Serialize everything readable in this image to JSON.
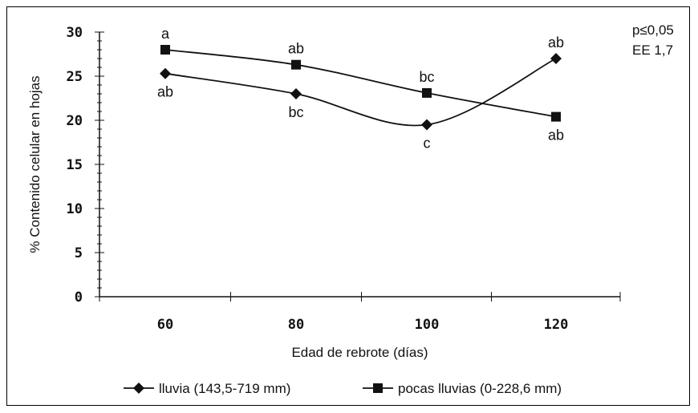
{
  "chart_data": {
    "type": "line",
    "xlabel": "Edad de rebrote (días)",
    "ylabel": "% Contenido celular en hojas",
    "categories": [
      "60",
      "80",
      "100",
      "120"
    ],
    "x_ticks": [
      "60",
      "80",
      "100",
      "120"
    ],
    "y_ticks": [
      "0",
      "5",
      "10",
      "15",
      "20",
      "25",
      "30"
    ],
    "ylim": [
      0,
      30
    ],
    "grid": false,
    "legend_position": "bottom",
    "annotations": [
      "p≤0,05",
      "EE 1,7"
    ],
    "series": [
      {
        "name": "lluvia (143,5-719 mm)",
        "marker": "diamond",
        "smooth": true,
        "values": [
          25.3,
          23.0,
          19.5,
          27.0
        ],
        "labels": [
          "ab",
          "bc",
          "c",
          "ab"
        ]
      },
      {
        "name": "pocas lluvias (0-228,6 mm)",
        "marker": "square",
        "smooth": true,
        "values": [
          28.0,
          26.3,
          23.1,
          20.4
        ],
        "labels": [
          "a",
          "ab",
          "bc",
          "ab"
        ]
      }
    ],
    "colors": {
      "line": "#111111",
      "text": "#111111"
    }
  }
}
